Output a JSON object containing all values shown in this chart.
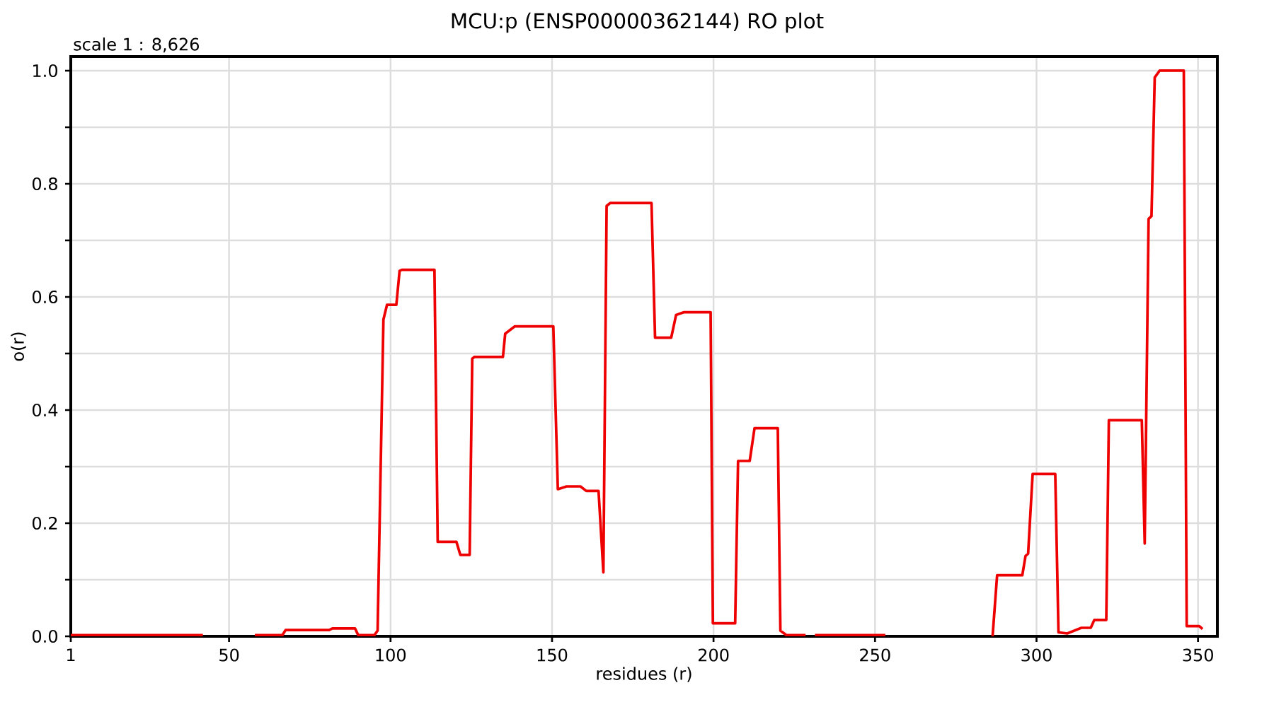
{
  "chart_data": {
    "type": "line",
    "title": "MCU:p (ENSP00000362144) RO plot",
    "xlabel": "residues (r)",
    "ylabel": "o(r)",
    "annotations": [
      "scale 1 : 8,626"
    ],
    "x": [
      1,
      41.9,
      50,
      58,
      66.5,
      67.5,
      81,
      82,
      89,
      90,
      95,
      96,
      97.8,
      98.9,
      101.8,
      102.8,
      103.5,
      113.6,
      114.6,
      120.4,
      121.6,
      124.5,
      125.3,
      126,
      134.8,
      135.5,
      138.5,
      150.4,
      151.8,
      154.5,
      158.8,
      160.6,
      164.4,
      165.9,
      166.9,
      168,
      180.8,
      181.9,
      186.9,
      188.4,
      190.9,
      199.1,
      199.8,
      206.7,
      207.6,
      211.2,
      212.7,
      219.9,
      220.7,
      222.6,
      228.5,
      230,
      231.4,
      253.2,
      270,
      286.4,
      287.8,
      295.6,
      296.6,
      297.4,
      298.8,
      305.8,
      306.8,
      309.5,
      313.9,
      316.8,
      317.9,
      321.6,
      322.4,
      332.6,
      333.5,
      334.7,
      335.6,
      336.6,
      338.1,
      345.6,
      346.5,
      350.4,
      351.4
    ],
    "series": [
      {
        "color": "#ee0000",
        "values": [
          0.002,
          0.002,
          null,
          0.002,
          0.002,
          0.011,
          0.011,
          0.014,
          0.014,
          0.002,
          0.002,
          0.01,
          0.56,
          0.586,
          0.586,
          0.646,
          0.648,
          0.648,
          0.167,
          0.167,
          0.144,
          0.144,
          0.491,
          0.494,
          0.494,
          0.535,
          0.548,
          0.548,
          0.26,
          0.265,
          0.265,
          0.257,
          0.257,
          0.113,
          0.761,
          0.766,
          0.766,
          0.528,
          0.528,
          0.568,
          0.573,
          0.573,
          0.023,
          0.023,
          0.31,
          0.31,
          0.368,
          0.368,
          0.01,
          0.002,
          0.002,
          null,
          0.002,
          0.002,
          null,
          0.0,
          0.108,
          0.108,
          0.142,
          0.146,
          0.287,
          0.287,
          0.007,
          0.005,
          0.015,
          0.015,
          0.029,
          0.029,
          0.382,
          0.382,
          0.164,
          0.738,
          0.743,
          0.988,
          1.0,
          1.0,
          0.018,
          0.018,
          0.013
        ]
      }
    ],
    "xlim": [
      1,
      356
    ],
    "ylim": [
      0,
      1.025
    ],
    "xticks": [
      1,
      50,
      100,
      150,
      200,
      250,
      300,
      350
    ],
    "yticks": [
      {
        "value": 0,
        "label": "0.0"
      },
      {
        "value": 0.1,
        "label": null
      },
      {
        "value": 0.2,
        "label": "0.2"
      },
      {
        "value": 0.3,
        "label": null
      },
      {
        "value": 0.4,
        "label": "0.4"
      },
      {
        "value": 0.5,
        "label": null
      },
      {
        "value": 0.6,
        "label": "0.6"
      },
      {
        "value": 0.7,
        "label": null
      },
      {
        "value": 0.8,
        "label": "0.8"
      },
      {
        "value": 0.9,
        "label": null
      },
      {
        "value": 1.0,
        "label": "1.0"
      }
    ],
    "grid": true
  }
}
